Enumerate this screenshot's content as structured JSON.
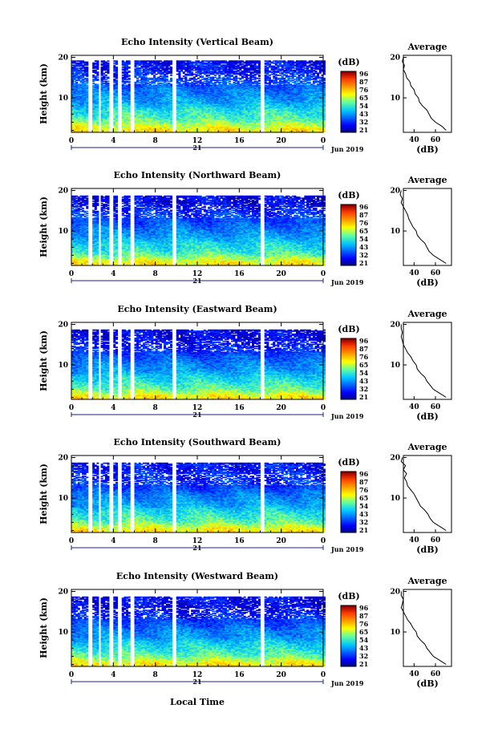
{
  "figure": {
    "xlabel": "Local Time",
    "x_ticks": [
      "0",
      "4",
      "8",
      "12",
      "16",
      "20",
      "0"
    ],
    "day_label": "21",
    "date_label": "Jun 2019",
    "ylabel": "Height (km)",
    "y_ticks": [
      "20",
      "10"
    ],
    "colorbar_title": "(dB)",
    "colorbar_ticks": [
      "96",
      "87",
      "76",
      "65",
      "54",
      "43",
      "32",
      "21"
    ],
    "avg_title": "Average",
    "avg_xlabel": "(dB)",
    "avg_y_ticks": [
      "20",
      "10"
    ],
    "avg_x_ticks": [
      "40",
      "60"
    ]
  },
  "chart_data": [
    {
      "type": "heatmap",
      "title": "Echo Intensity (Vertical Beam)",
      "xlabel": "Local Time",
      "ylabel": "Height (km)",
      "xlim": [
        0,
        24
      ],
      "ylim": [
        1.5,
        20.5
      ],
      "color_range": [
        21,
        96
      ],
      "colorbar_label": "(dB)",
      "data_gaps_hours": [
        [
          1.6,
          2.0
        ],
        [
          2.6,
          2.9
        ],
        [
          3.7,
          4.0
        ],
        [
          4.4,
          4.8
        ],
        [
          5.7,
          6.0
        ],
        [
          9.6,
          9.9
        ],
        [
          18.0,
          18.3
        ]
      ],
      "profile": {
        "title": "Average",
        "xlabel": "(dB)",
        "height_km": [
          2,
          3,
          4,
          5,
          6,
          7,
          8,
          9,
          10,
          11,
          12,
          13,
          14,
          15,
          16,
          17,
          18,
          19,
          20
        ],
        "mean_db": [
          70,
          66,
          60,
          56,
          54,
          52,
          48,
          45,
          44,
          41,
          40,
          37,
          36,
          33,
          32,
          30,
          31,
          29,
          30
        ]
      }
    },
    {
      "type": "heatmap",
      "title": "Echo Intensity (Northward Beam)",
      "xlabel": "Local Time",
      "ylabel": "Height (km)",
      "xlim": [
        0,
        24
      ],
      "ylim": [
        1.5,
        20.5
      ],
      "color_range": [
        21,
        96
      ],
      "colorbar_label": "(dB)",
      "data_gaps_hours": [
        [
          1.6,
          2.0
        ],
        [
          2.6,
          2.9
        ],
        [
          3.7,
          4.0
        ],
        [
          4.4,
          4.8
        ],
        [
          5.7,
          6.0
        ],
        [
          9.6,
          9.9
        ],
        [
          18.0,
          18.3
        ]
      ],
      "profile": {
        "title": "Average",
        "xlabel": "(dB)",
        "height_km": [
          2,
          3,
          4,
          5,
          6,
          7,
          8,
          9,
          10,
          11,
          12,
          13,
          14,
          15,
          16,
          17,
          18,
          19,
          20
        ],
        "mean_db": [
          70,
          64,
          58,
          54,
          52,
          50,
          46,
          43,
          42,
          39,
          37,
          35,
          34,
          32,
          30,
          28,
          29,
          27,
          28
        ]
      }
    },
    {
      "type": "heatmap",
      "title": "Echo Intensity (Eastward Beam)",
      "xlabel": "Local Time",
      "ylabel": "Height (km)",
      "xlim": [
        0,
        24
      ],
      "ylim": [
        1.5,
        20.5
      ],
      "color_range": [
        21,
        96
      ],
      "colorbar_label": "(dB)",
      "data_gaps_hours": [
        [
          1.6,
          2.0
        ],
        [
          2.6,
          2.9
        ],
        [
          3.7,
          4.0
        ],
        [
          4.4,
          4.8
        ],
        [
          5.7,
          6.0
        ],
        [
          9.6,
          9.9
        ],
        [
          18.0,
          18.3
        ]
      ],
      "profile": {
        "title": "Average",
        "xlabel": "(dB)",
        "height_km": [
          2,
          3,
          4,
          5,
          6,
          7,
          8,
          9,
          10,
          11,
          12,
          13,
          14,
          15,
          16,
          17,
          18,
          19,
          20
        ],
        "mean_db": [
          70,
          64,
          58,
          55,
          52,
          50,
          46,
          43,
          42,
          39,
          37,
          34,
          32,
          30,
          29,
          28,
          29,
          28,
          28
        ]
      }
    },
    {
      "type": "heatmap",
      "title": "Echo Intensity (Southward Beam)",
      "xlabel": "Local Time",
      "ylabel": "Height (km)",
      "xlim": [
        0,
        24
      ],
      "ylim": [
        1.5,
        20.5
      ],
      "color_range": [
        21,
        96
      ],
      "colorbar_label": "(dB)",
      "data_gaps_hours": [
        [
          1.6,
          2.0
        ],
        [
          2.6,
          2.9
        ],
        [
          3.7,
          4.0
        ],
        [
          4.4,
          4.8
        ],
        [
          5.7,
          6.0
        ],
        [
          9.6,
          9.9
        ],
        [
          18.0,
          18.3
        ]
      ],
      "profile": {
        "title": "Average",
        "xlabel": "(dB)",
        "height_km": [
          2,
          3,
          4,
          5,
          6,
          7,
          8,
          9,
          10,
          11,
          12,
          13,
          14,
          15,
          16,
          17,
          18,
          19,
          20
        ],
        "mean_db": [
          70,
          64,
          58,
          55,
          53,
          50,
          46,
          44,
          42,
          40,
          37,
          34,
          33,
          31,
          33,
          30,
          32,
          28,
          29
        ]
      }
    },
    {
      "type": "heatmap",
      "title": "Echo Intensity (Westward Beam)",
      "xlabel": "Local Time",
      "ylabel": "Height (km)",
      "xlim": [
        0,
        24
      ],
      "ylim": [
        1.5,
        20.5
      ],
      "color_range": [
        21,
        96
      ],
      "colorbar_label": "(dB)",
      "data_gaps_hours": [
        [
          1.6,
          2.0
        ],
        [
          2.6,
          2.9
        ],
        [
          3.7,
          4.0
        ],
        [
          4.4,
          4.8
        ],
        [
          5.7,
          6.0
        ],
        [
          9.6,
          9.9
        ],
        [
          18.0,
          18.3
        ]
      ],
      "profile": {
        "title": "Average",
        "xlabel": "(dB)",
        "height_km": [
          2,
          3,
          4,
          5,
          6,
          7,
          8,
          9,
          10,
          11,
          12,
          13,
          14,
          15,
          16,
          17,
          18,
          19,
          20
        ],
        "mean_db": [
          70,
          64,
          58,
          55,
          52,
          50,
          46,
          43,
          42,
          39,
          37,
          34,
          32,
          30,
          28,
          29,
          30,
          28,
          28
        ]
      }
    }
  ]
}
